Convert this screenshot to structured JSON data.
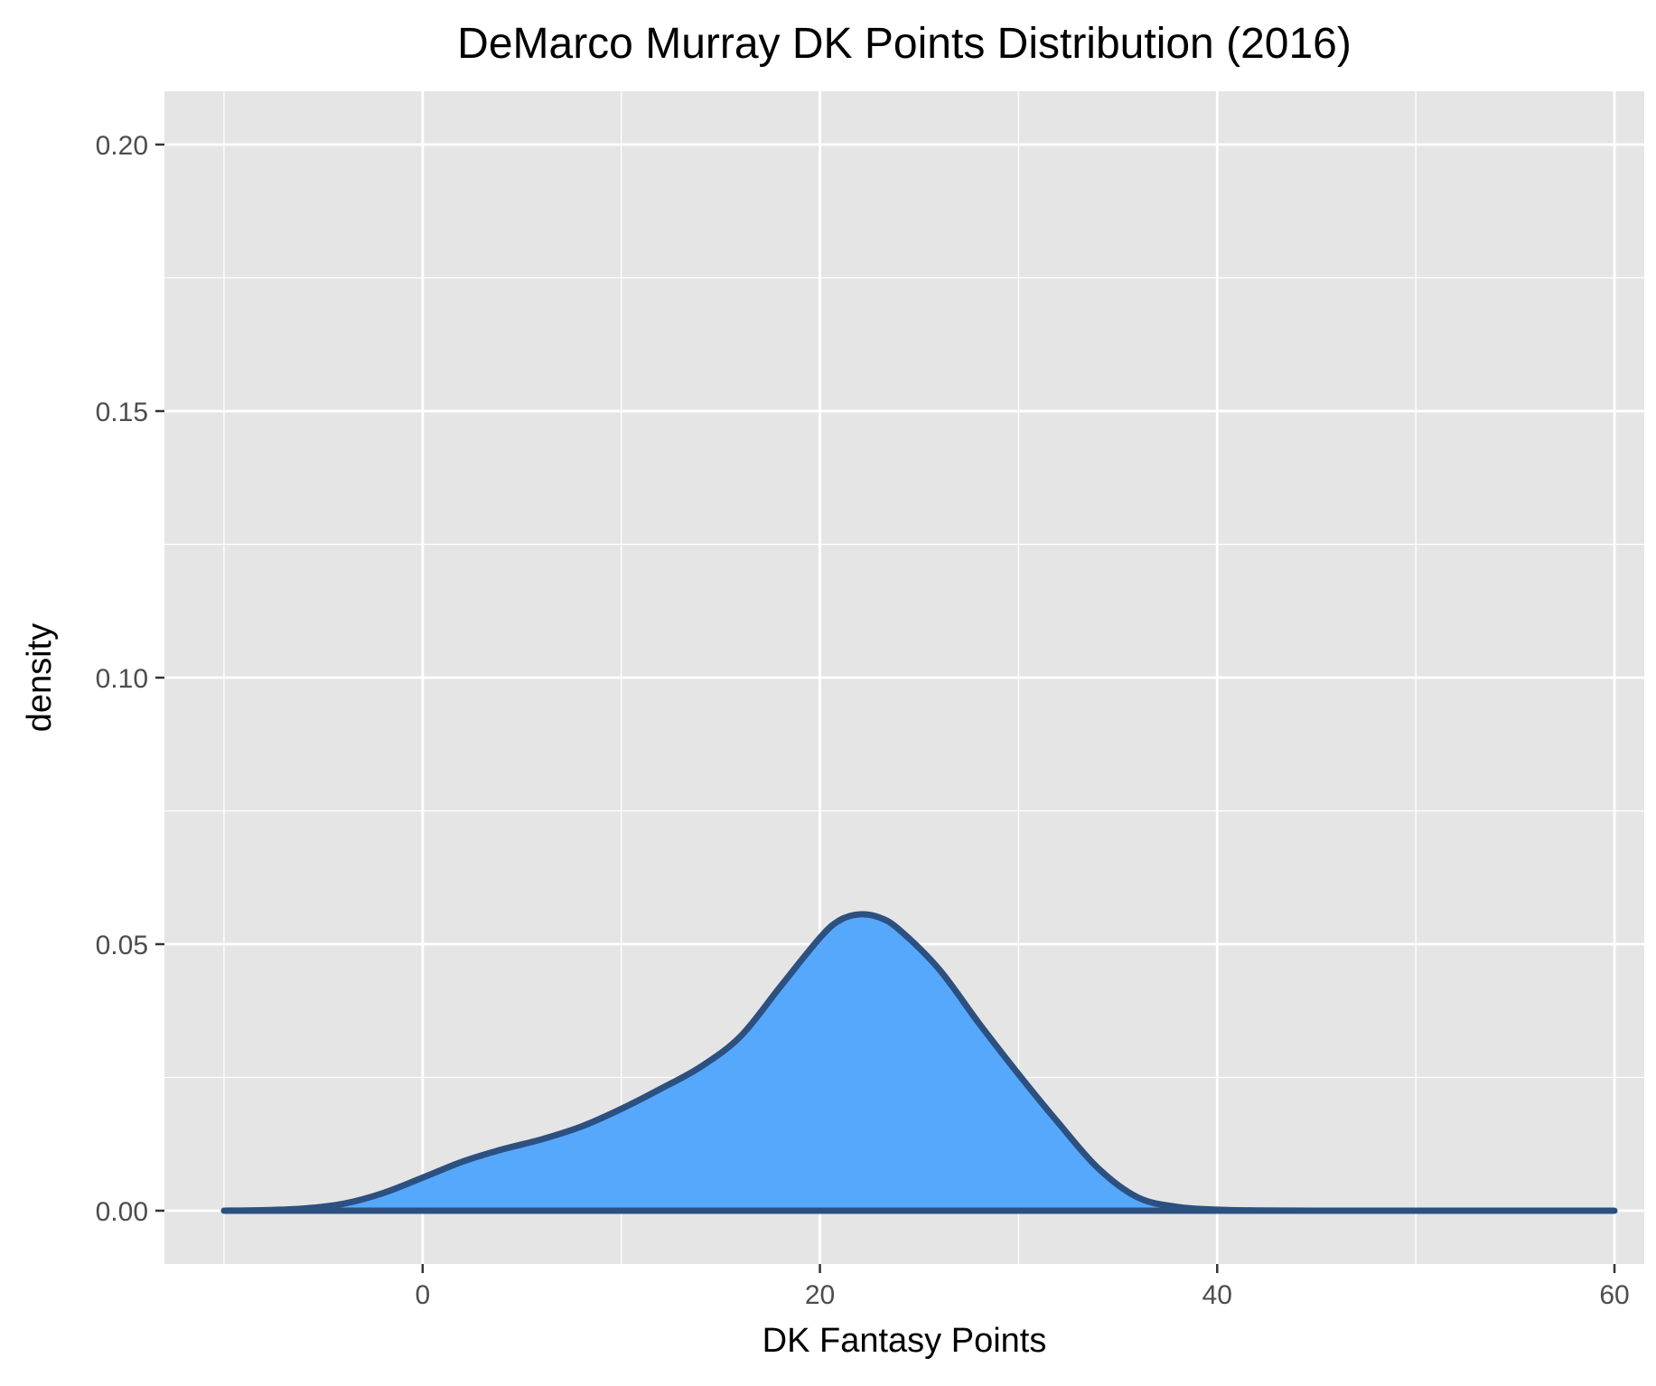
{
  "chart_data": {
    "type": "area",
    "title": "DeMarco Murray DK Points Distribution (2016)",
    "xlabel": "DK Fantasy Points",
    "ylabel": "density",
    "xlim": [
      -13,
      61.5
    ],
    "ylim": [
      -0.01,
      0.21
    ],
    "x_ticks": [
      0,
      20,
      40,
      60
    ],
    "x_tick_labels": [
      "0",
      "20",
      "40",
      "60"
    ],
    "y_ticks": [
      0.0,
      0.05,
      0.1,
      0.15,
      0.2
    ],
    "y_tick_labels": [
      "0.00",
      "0.05",
      "0.10",
      "0.15",
      "0.20"
    ],
    "grid": true,
    "series": [
      {
        "x": [
          -10,
          -8,
          -6,
          -4,
          -2,
          0,
          2,
          4,
          6,
          8,
          10,
          12,
          14,
          16,
          18,
          20,
          21,
          22,
          23,
          24,
          26,
          28,
          30,
          32,
          34,
          36,
          38,
          40,
          42,
          45,
          50,
          55,
          60
        ],
        "y": [
          0.0,
          0.0001,
          0.0004,
          0.0013,
          0.0033,
          0.0062,
          0.0092,
          0.0115,
          0.0134,
          0.0158,
          0.0191,
          0.0229,
          0.027,
          0.0327,
          0.042,
          0.0512,
          0.0545,
          0.0556,
          0.055,
          0.0527,
          0.0453,
          0.0352,
          0.0256,
          0.0165,
          0.008,
          0.0025,
          0.0007,
          0.0002,
          5e-05,
          0.0,
          0.0,
          0.0,
          0.0
        ]
      }
    ],
    "colors": {
      "panel_background": "#e5e5e5",
      "grid": "#ffffff",
      "fill": "#56a8fc",
      "line": "#2c5080",
      "tick_label": "#4d4d4d",
      "tick_mark": "#333333"
    }
  }
}
